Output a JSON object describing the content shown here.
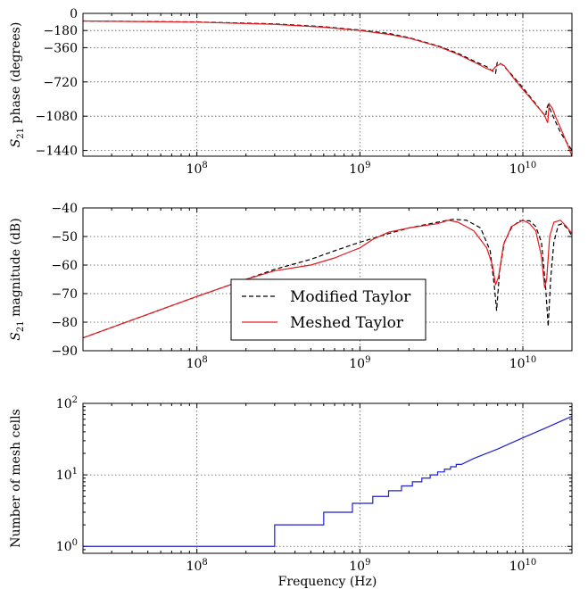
{
  "chart_data": [
    {
      "id": "phase",
      "type": "line",
      "ylabel": "S21 phase (degrees)",
      "ylabel_main": "S",
      "ylabel_sub": "21",
      "ylabel_rest": " phase (degrees)",
      "xlabel": "",
      "xscale": "log",
      "xlim": [
        20000000,
        20000000000
      ],
      "ylim": [
        -1500,
        0
      ],
      "yticks": [
        0,
        -180,
        -360,
        -720,
        -1080,
        -1440
      ],
      "ytick_labels": [
        "0",
        "−180",
        "−360",
        "−720",
        "−1080",
        "−1440"
      ],
      "xticks": [
        100000000,
        1000000000,
        10000000000
      ],
      "xtick_bases": [
        "10",
        "10",
        "10"
      ],
      "xtick_exps": [
        "8",
        "9",
        "10"
      ],
      "grid": true,
      "series": [
        {
          "name": "Modified Taylor",
          "color": "#000000",
          "style": "dashed",
          "points": [
            [
              20000000,
              -80
            ],
            [
              100000000,
              -90
            ],
            [
              300000000,
              -110
            ],
            [
              600000000,
              -140
            ],
            [
              1000000000,
              -175
            ],
            [
              1500000000,
              -210
            ],
            [
              2000000000,
              -255
            ],
            [
              3000000000,
              -340
            ],
            [
              4000000000,
              -420
            ],
            [
              5000000000,
              -500
            ],
            [
              6000000000,
              -560
            ],
            [
              6800000000,
              -630
            ],
            [
              6950000000,
              -520
            ],
            [
              7000000000,
              -510
            ],
            [
              7500000000,
              -540
            ],
            [
              8500000000,
              -640
            ],
            [
              10000000000,
              -780
            ],
            [
              11000000000,
              -870
            ],
            [
              12000000000,
              -950
            ],
            [
              13000000000,
              -1030
            ],
            [
              13800000000,
              -1080
            ],
            [
              14000000000,
              -1000
            ],
            [
              14300000000,
              -960
            ],
            [
              15500000000,
              -1100
            ],
            [
              17000000000,
              -1250
            ],
            [
              18500000000,
              -1350
            ],
            [
              20000000000,
              -1440
            ]
          ]
        },
        {
          "name": "Meshed Taylor",
          "color": "#e8191d",
          "style": "solid",
          "points": [
            [
              20000000,
              -80
            ],
            [
              100000000,
              -92
            ],
            [
              300000000,
              -115
            ],
            [
              600000000,
              -145
            ],
            [
              1000000000,
              -180
            ],
            [
              1500000000,
              -220
            ],
            [
              2000000000,
              -260
            ],
            [
              3000000000,
              -345
            ],
            [
              4000000000,
              -430
            ],
            [
              5000000000,
              -510
            ],
            [
              6000000000,
              -580
            ],
            [
              6500000000,
              -600
            ],
            [
              6800000000,
              -560
            ],
            [
              7300000000,
              -530
            ],
            [
              7700000000,
              -550
            ],
            [
              8500000000,
              -650
            ],
            [
              10000000000,
              -800
            ],
            [
              11000000000,
              -880
            ],
            [
              12000000000,
              -960
            ],
            [
              13500000000,
              -1060
            ],
            [
              14200000000,
              -1150
            ],
            [
              14500000000,
              -950
            ],
            [
              15200000000,
              -1000
            ],
            [
              16000000000,
              -1100
            ],
            [
              17500000000,
              -1250
            ],
            [
              19000000000,
              -1400
            ],
            [
              20000000000,
              -1500
            ]
          ]
        }
      ]
    },
    {
      "id": "magnitude",
      "type": "line",
      "ylabel": "S21 magnitude (dB)",
      "ylabel_main": "S",
      "ylabel_sub": "21",
      "ylabel_rest": " magnitude (dB)",
      "xlabel": "",
      "xscale": "log",
      "xlim": [
        20000000,
        20000000000
      ],
      "ylim": [
        -90,
        -40
      ],
      "yticks": [
        -40,
        -50,
        -60,
        -70,
        -80,
        -90
      ],
      "ytick_labels": [
        "−40",
        "−50",
        "−60",
        "−70",
        "−80",
        "−90"
      ],
      "xticks": [
        100000000,
        1000000000,
        10000000000
      ],
      "xtick_bases": [
        "10",
        "10",
        "10"
      ],
      "xtick_exps": [
        "8",
        "9",
        "10"
      ],
      "grid": true,
      "legend": {
        "position": "center-left",
        "entries": [
          "Modified Taylor",
          "Meshed Taylor"
        ]
      },
      "series": [
        {
          "name": "Modified Taylor",
          "color": "#000000",
          "style": "dashed",
          "points": [
            [
              20000000,
              -85.5
            ],
            [
              100000000,
              -71
            ],
            [
              300000000,
              -61.5
            ],
            [
              500000000,
              -58
            ],
            [
              700000000,
              -55
            ],
            [
              1000000000,
              -52
            ],
            [
              1500000000,
              -49
            ],
            [
              2000000000,
              -47
            ],
            [
              3000000000,
              -45
            ],
            [
              3700000000,
              -44
            ],
            [
              4500000000,
              -44.3
            ],
            [
              5500000000,
              -47
            ],
            [
              6300000000,
              -55
            ],
            [
              6700000000,
              -68
            ],
            [
              6900000000,
              -76
            ],
            [
              7200000000,
              -62
            ],
            [
              7700000000,
              -52
            ],
            [
              8500000000,
              -47
            ],
            [
              9500000000,
              -44.5
            ],
            [
              11000000000,
              -44.5
            ],
            [
              12000000000,
              -46.5
            ],
            [
              13000000000,
              -52
            ],
            [
              13800000000,
              -68
            ],
            [
              14300000000,
              -81.5
            ],
            [
              14800000000,
              -65
            ],
            [
              15500000000,
              -52
            ],
            [
              16500000000,
              -46
            ],
            [
              17500000000,
              -45.5
            ],
            [
              19000000000,
              -47.5
            ],
            [
              20000000000,
              -50
            ]
          ]
        },
        {
          "name": "Meshed Taylor",
          "color": "#e8191d",
          "style": "solid",
          "points": [
            [
              20000000,
              -85.5
            ],
            [
              100000000,
              -71
            ],
            [
              200000000,
              -65
            ],
            [
              300000000,
              -62
            ],
            [
              500000000,
              -60
            ],
            [
              700000000,
              -57.5
            ],
            [
              900000000,
              -55
            ],
            [
              1000000000,
              -54
            ],
            [
              1200000000,
              -51
            ],
            [
              1500000000,
              -48.5
            ],
            [
              2000000000,
              -47
            ],
            [
              3000000000,
              -45.5
            ],
            [
              3500000000,
              -44.3
            ],
            [
              4000000000,
              -45
            ],
            [
              5000000000,
              -48
            ],
            [
              6000000000,
              -54
            ],
            [
              6500000000,
              -60
            ],
            [
              6800000000,
              -67
            ],
            [
              7100000000,
              -64
            ],
            [
              7600000000,
              -53
            ],
            [
              8500000000,
              -46.5
            ],
            [
              10000000000,
              -44.3
            ],
            [
              11000000000,
              -45.5
            ],
            [
              12000000000,
              -48
            ],
            [
              13000000000,
              -57
            ],
            [
              13600000000,
              -68
            ],
            [
              14000000000,
              -65
            ],
            [
              14600000000,
              -50
            ],
            [
              15500000000,
              -45
            ],
            [
              17000000000,
              -44.3
            ],
            [
              18500000000,
              -46.5
            ],
            [
              20000000000,
              -49
            ]
          ]
        }
      ]
    },
    {
      "id": "mesh",
      "type": "line",
      "ylabel": "Number of mesh cells",
      "xlabel": "Frequency (Hz)",
      "xscale": "log",
      "yscale": "log",
      "xlim": [
        20000000,
        20000000000
      ],
      "ylim": [
        0.8,
        100
      ],
      "yticks": [
        1,
        10,
        100
      ],
      "ytick_bases": [
        "10",
        "10",
        "10"
      ],
      "ytick_exps": [
        "0",
        "1",
        "2"
      ],
      "xticks": [
        100000000,
        1000000000,
        10000000000
      ],
      "xtick_bases": [
        "10",
        "10",
        "10"
      ],
      "xtick_exps": [
        "8",
        "9",
        "10"
      ],
      "grid": true,
      "series": [
        {
          "name": "",
          "color": "#1f1fd0",
          "style": "solid",
          "points": [
            [
              20000000,
              1
            ],
            [
              300000000,
              1
            ],
            [
              300000000,
              2
            ],
            [
              600000000,
              2
            ],
            [
              600000000,
              3
            ],
            [
              900000000,
              3
            ],
            [
              900000000,
              4
            ],
            [
              1200000000,
              4
            ],
            [
              1200000000,
              5
            ],
            [
              1500000000,
              5
            ],
            [
              1500000000,
              6
            ],
            [
              1800000000,
              6
            ],
            [
              1800000000,
              7
            ],
            [
              2100000000,
              7
            ],
            [
              2100000000,
              8
            ],
            [
              2400000000,
              8
            ],
            [
              2400000000,
              9
            ],
            [
              2700000000,
              9
            ],
            [
              2700000000,
              10
            ],
            [
              3000000000,
              10
            ],
            [
              3000000000,
              11
            ],
            [
              3300000000,
              11
            ],
            [
              3300000000,
              12
            ],
            [
              3600000000,
              12
            ],
            [
              3600000000,
              13
            ],
            [
              3900000000,
              13
            ],
            [
              3900000000,
              14
            ],
            [
              4200000000,
              14
            ],
            [
              5000000000,
              17
            ],
            [
              7000000000,
              23
            ],
            [
              10000000000,
              33
            ],
            [
              14000000000,
              46
            ],
            [
              20000000000,
              66
            ]
          ]
        }
      ]
    }
  ]
}
